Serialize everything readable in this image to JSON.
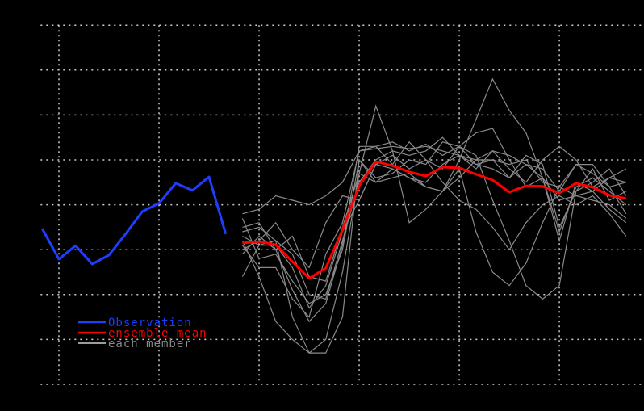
{
  "chart_data": {
    "type": "line",
    "title": "",
    "xlabel": "",
    "ylabel": "",
    "xlim": [
      -1,
      35
    ],
    "ylim": [
      0,
      8
    ],
    "x_gridlines": [
      0,
      6,
      12,
      18,
      24,
      30
    ],
    "y_gridlines": [
      0,
      1,
      2,
      3,
      4,
      5,
      6,
      7,
      8
    ],
    "grid": true,
    "legend_position": "bottom-left",
    "colors": {
      "observation": "#1f3dff",
      "mean": "#ff0000",
      "member": "#8a8a8a",
      "grid": "#cccccc",
      "background": "#000000"
    },
    "legend": [
      {
        "label": "Observation",
        "color": "#1f3dff"
      },
      {
        "label": "ensemble mean",
        "color": "#ff0000"
      },
      {
        "label": "each member",
        "color": "#8a8a8a"
      }
    ],
    "observation": {
      "x_start": -1,
      "values": [
        3.47,
        2.79,
        3.09,
        2.68,
        2.88,
        3.35,
        3.85,
        4.03,
        4.48,
        4.32,
        4.62,
        3.35
      ]
    },
    "ensemble_mean": {
      "x_start": 11,
      "values": [
        3.15,
        3.18,
        3.11,
        2.73,
        2.36,
        2.59,
        3.44,
        4.42,
        4.96,
        4.87,
        4.73,
        4.64,
        4.84,
        4.82,
        4.68,
        4.55,
        4.28,
        4.42,
        4.41,
        4.26,
        4.48,
        4.39,
        4.21,
        4.14
      ]
    },
    "members": {
      "x_start": 11,
      "series": [
        [
          3.8,
          3.9,
          4.2,
          4.1,
          4.0,
          4.2,
          4.5,
          5.2,
          5.25,
          5.3,
          5.25,
          5.3,
          5.2,
          5.1,
          5.0,
          5.2,
          5.1,
          4.9,
          4.8,
          4.3,
          4.9,
          4.7,
          4.4,
          4.5
        ],
        [
          3.5,
          3.6,
          3.0,
          2.1,
          1.4,
          1.8,
          3.1,
          5.3,
          5.3,
          5.4,
          5.2,
          5.35,
          5.1,
          5.3,
          5.6,
          5.7,
          5.0,
          4.4,
          4.6,
          3.4,
          4.4,
          4.6,
          4.3,
          4.0
        ],
        [
          3.2,
          2.4,
          1.4,
          1.0,
          0.7,
          1.0,
          2.5,
          4.7,
          6.2,
          5.2,
          3.6,
          3.9,
          4.3,
          5.0,
          5.9,
          6.8,
          6.1,
          5.6,
          4.6,
          3.2,
          4.5,
          4.3,
          3.9,
          3.6
        ],
        [
          2.4,
          3.1,
          3.2,
          1.5,
          0.7,
          0.7,
          1.5,
          5.0,
          4.5,
          4.8,
          4.6,
          4.4,
          4.3,
          4.8,
          3.4,
          2.5,
          2.2,
          2.7,
          3.6,
          4.4,
          4.9,
          4.9,
          4.4,
          3.8
        ],
        [
          3.7,
          2.8,
          2.9,
          2.3,
          1.8,
          2.0,
          3.0,
          5.0,
          4.6,
          4.7,
          5.0,
          4.9,
          5.4,
          5.3,
          5.1,
          4.1,
          3.2,
          2.2,
          1.9,
          2.2,
          4.3,
          4.5,
          4.8,
          4.2
        ],
        [
          3.0,
          3.2,
          3.6,
          3.0,
          2.6,
          3.6,
          4.2,
          4.1,
          4.9,
          4.8,
          4.6,
          4.5,
          4.9,
          5.1,
          4.9,
          4.8,
          4.6,
          5.1,
          4.9,
          3.5,
          4.3,
          4.8,
          4.1,
          4.3
        ],
        [
          2.9,
          3.3,
          3.0,
          3.3,
          2.4,
          2.3,
          3.5,
          4.7,
          4.5,
          4.6,
          4.7,
          4.4,
          4.3,
          4.6,
          5.0,
          5.0,
          4.9,
          5.0,
          4.5,
          4.4,
          4.2,
          4.1,
          4.0,
          3.7
        ],
        [
          3.3,
          3.1,
          3.1,
          2.6,
          1.7,
          2.2,
          3.4,
          4.1,
          4.9,
          5.1,
          4.8,
          5.0,
          4.8,
          5.3,
          4.9,
          5.0,
          4.6,
          4.9,
          4.6,
          4.1,
          4.2,
          4.3,
          4.6,
          4.5
        ],
        [
          3.4,
          3.5,
          3.2,
          2.9,
          2.0,
          1.9,
          3.2,
          4.5,
          5.0,
          5.2,
          5.1,
          5.2,
          5.5,
          5.1,
          4.8,
          5.2,
          4.8,
          4.5,
          5.0,
          5.3,
          5.0,
          4.4,
          4.6,
          4.8
        ],
        [
          3.1,
          2.6,
          2.6,
          1.9,
          1.5,
          2.9,
          3.6,
          5.2,
          5.3,
          4.9,
          5.4,
          5.0,
          4.5,
          4.1,
          3.9,
          3.5,
          3.0,
          3.6,
          4.0,
          4.2,
          4.0,
          4.2,
          3.8,
          3.3
        ]
      ]
    }
  }
}
